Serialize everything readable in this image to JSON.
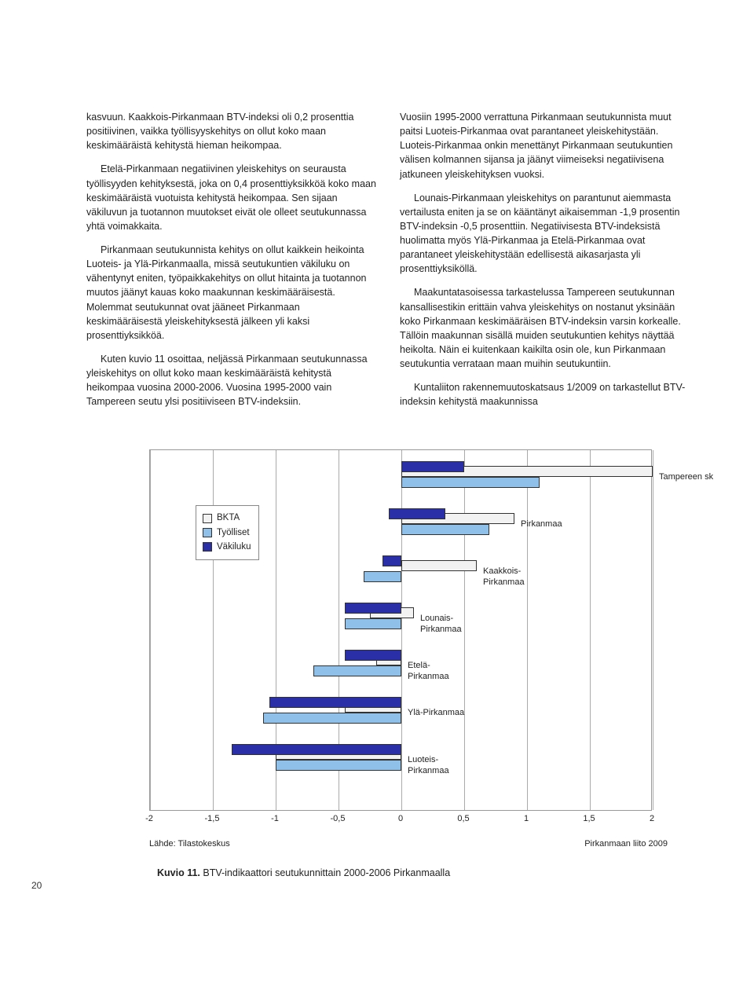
{
  "page_number": "20",
  "left_col": {
    "p1": "kasvuun. Kaakkois-Pirkanmaan BTV-indeksi oli 0,2 prosenttia positiivinen, vaikka työllisyyskehitys on ollut koko maan keskimääräistä kehitystä hieman heikompaa.",
    "p2": "Etelä-Pirkanmaan negatiivinen yleiskehitys on seurausta työllisyyden kehityksestä, joka on 0,4 prosenttiyksikköä koko maan keskimääräistä vuotuista kehitystä heikompaa. Sen sijaan väkiluvun ja tuotannon muutokset eivät ole olleet seutukunnassa yhtä voimakkaita.",
    "p3": "Pirkanmaan seutukunnista kehitys on ollut kaikkein heikointa Luoteis- ja Ylä-Pirkanmaalla, missä seutukuntien väkiluku on vähentynyt eniten, työpaikkakehitys on ollut hitainta ja tuotannon muutos jäänyt kauas koko maakunnan keskimääräisestä. Molemmat seutukunnat ovat jääneet Pirkanmaan keskimääräisestä yleiskehityksestä jälkeen yli kaksi prosenttiyksikköä.",
    "p4": "Kuten kuvio 11 osoittaa, neljässä Pirkanmaan seutukunnassa yleiskehitys on ollut koko maan keskimääräistä kehitystä heikompaa vuosina 2000-2006. Vuosina 1995-2000 vain Tampereen seutu ylsi positiiviseen BTV-indeksiin."
  },
  "right_col": {
    "p1": "Vuosiin 1995-2000 verrattuna Pirkanmaan seutukunnista muut paitsi Luoteis-Pirkanmaa ovat parantaneet yleiskehitystään. Luoteis-Pirkanmaa onkin menettänyt Pirkanmaan seutukuntien välisen kolmannen sijansa ja jäänyt viimeiseksi negatiivisena jatkuneen yleiskehityksen vuoksi.",
    "p2": "Lounais-Pirkanmaan yleiskehitys on parantunut aiemmasta vertailusta eniten ja se on kääntänyt aikaisemman -1,9 prosentin BTV-indeksin -0,5 prosenttiin. Negatiivisesta BTV-indeksistä huolimatta myös Ylä-Pirkanmaa ja Etelä-Pirkanmaa ovat parantaneet yleiskehitystään edellisestä aikasarjasta yli prosenttiyksiköllä.",
    "p3": "Maakuntatasoisessa tarkastelussa Tampereen seutukunnan kansallisestikin erittäin vahva yleiskehitys on nostanut yksinään koko Pirkanmaan keskimääräisen BTV-indeksin varsin korkealle. Tällöin maakunnan sisällä muiden seutukuntien kehitys näyttää heikolta. Näin ei kuitenkaan kaikilta osin ole, kun Pirkanmaan seutukuntia verrataan maan muihin seutukuntiin.",
    "p4": "Kuntaliiton rakennemuutoskatsaus 1/2009 on tarkastellut BTV-indeksin kehitystä maakunnissa"
  },
  "chart": {
    "type": "horizontal-grouped-bar",
    "xlim": [
      -2,
      2
    ],
    "xticks": [
      "-2",
      "-1,5",
      "-1",
      "-0,5",
      "0",
      "0,5",
      "1",
      "1,5",
      "2"
    ],
    "colors": {
      "bkta": "#f2f2f2",
      "tyolliset": "#8fc0ea",
      "vakiluku": "#2a2fa8",
      "border": "#333333",
      "grid": "#aaaaaa",
      "bg": "#ffffff"
    },
    "legend": {
      "items": [
        {
          "key": "bkta",
          "label": "BKTA"
        },
        {
          "key": "tyolliset",
          "label": "Työlliset"
        },
        {
          "key": "vakiluku",
          "label": "Väkiluku"
        }
      ]
    },
    "series": [
      {
        "name": "Tampereen sk",
        "label_side": "right",
        "bkta": [
          0,
          2.0
        ],
        "tyolliset": [
          0,
          1.1
        ],
        "vakiluku": [
          0,
          0.5
        ]
      },
      {
        "name": "Pirkanmaa",
        "label_side": "right",
        "bkta": [
          0,
          0.9
        ],
        "tyolliset": [
          0,
          0.7
        ],
        "vakiluku": [
          -0.1,
          0.35
        ]
      },
      {
        "name": "Kaakkois-\nPirkanmaa",
        "label_side": "right",
        "bkta": [
          0,
          0.6
        ],
        "tyolliset": [
          -0.3,
          0
        ],
        "vakiluku": [
          -0.15,
          0
        ]
      },
      {
        "name": "Lounais-\nPirkanmaa",
        "label_side": "right",
        "bkta": [
          -0.25,
          0.1
        ],
        "tyolliset": [
          -0.45,
          0
        ],
        "vakiluku": [
          -0.45,
          0
        ]
      },
      {
        "name": "Etelä-\nPirkanmaa",
        "label_side": "right",
        "bkta": [
          -0.2,
          0
        ],
        "tyolliset": [
          -0.7,
          0
        ],
        "vakiluku": [
          -0.45,
          0
        ]
      },
      {
        "name": "Ylä-Pirkanmaa",
        "label_side": "right",
        "bkta": [
          -0.45,
          0
        ],
        "tyolliset": [
          -1.1,
          0
        ],
        "vakiluku": [
          -1.05,
          0
        ]
      },
      {
        "name": "Luoteis-\nPirkanmaa",
        "label_side": "right",
        "bkta": [
          -1.0,
          0
        ],
        "tyolliset": [
          -1.0,
          0
        ],
        "vakiluku": [
          -1.35,
          0
        ]
      }
    ],
    "source": "Lähde: Tilastokeskus",
    "credit": "Pirkanmaan liito 2009"
  },
  "caption": {
    "label": "Kuvio 11.",
    "text": "BTV-indikaattori seutukunnittain 2000-2006 Pirkanmaalla"
  }
}
